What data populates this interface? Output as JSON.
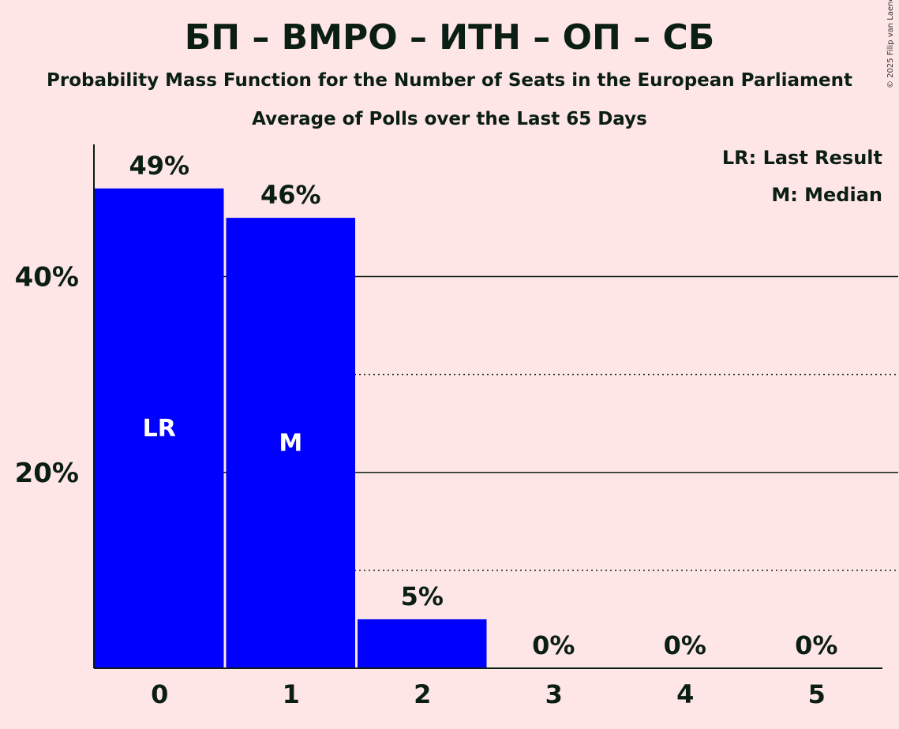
{
  "title": "БП – ВМРО – ИТН – ОП – СБ",
  "subtitle": "Probability Mass Function for the Number of Seats in the European Parliament",
  "subtitle2": "Average of Polls over the Last 65 Days",
  "copyright": "© 2025 Filip van Laenen",
  "legend": {
    "last_result": "LR: Last Result",
    "median": "M: Median"
  },
  "colors": {
    "bar": "#0000FF",
    "background": "#FFE6E6",
    "text": "#0A1E14"
  },
  "chart_data": {
    "type": "bar",
    "categories": [
      "0",
      "1",
      "2",
      "3",
      "4",
      "5"
    ],
    "values": [
      49,
      46,
      5,
      0,
      0,
      0
    ],
    "value_labels": [
      "49%",
      "46%",
      "5%",
      "0%",
      "0%",
      "0%"
    ],
    "bar_markers": [
      "LR",
      "M",
      "",
      "",
      "",
      ""
    ],
    "y_ticks": [
      20,
      40
    ],
    "y_tick_labels": [
      "20%",
      "40%"
    ],
    "ylim": [
      0,
      53.5
    ],
    "grid": "solid at 20% and 40%, dotted at 10% and 30%"
  }
}
